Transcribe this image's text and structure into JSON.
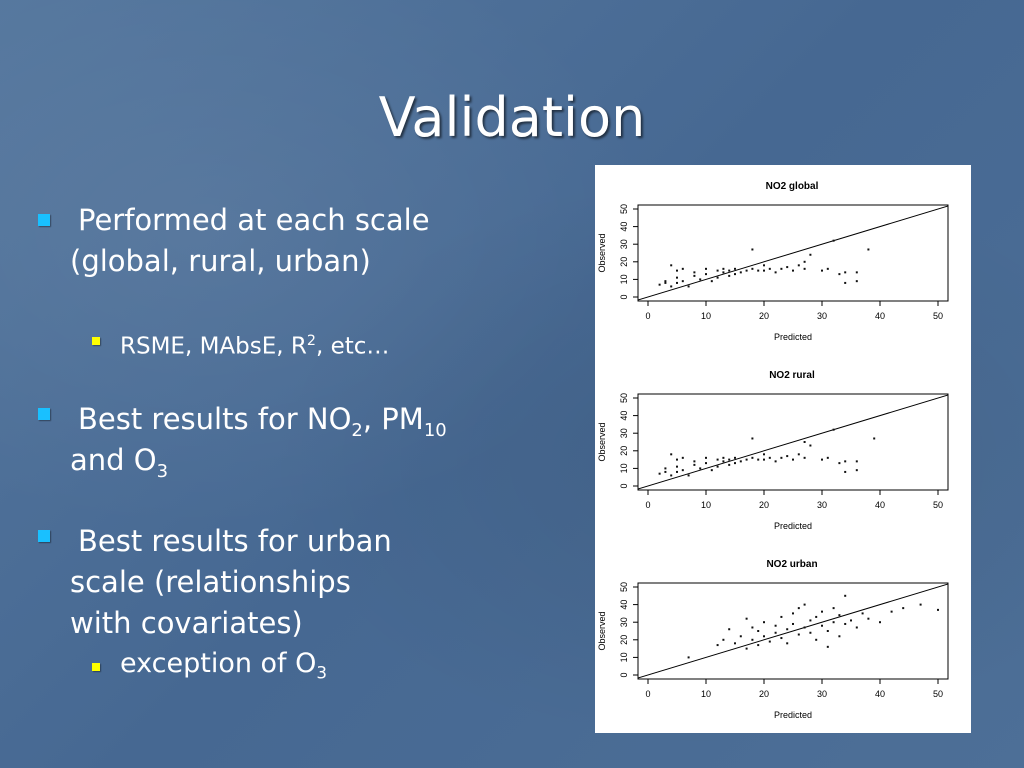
{
  "slide": {
    "title": "Validation",
    "colors": {
      "bullet_level1": "#19c0ff",
      "bullet_level2": "#ffff00",
      "background": "#4b6d95"
    },
    "bullets": [
      {
        "line1": "Performed at each scale",
        "line2": "(global, rural, urban)"
      },
      {
        "text_a": "RSME, MAbsE, R",
        "sup": "2",
        "text_b": ", etc…"
      },
      {
        "text_a": "Best results for NO",
        "sub1": "2",
        "text_b": ", PM",
        "sub2": "10",
        "line2_a": "and O",
        "line2_sub": "3"
      },
      {
        "line1": "Best results for urban",
        "line2": "scale (relationships",
        "line3": "with covariates)"
      },
      {
        "text_a": "exception of O",
        "sub": "3"
      }
    ]
  },
  "chart_data": [
    {
      "type": "scatter",
      "title": "NO2 global",
      "xlabel": "Predicted",
      "ylabel": "Observed",
      "xlim": [
        0,
        50
      ],
      "ylim": [
        0,
        50
      ],
      "xticks": [
        0,
        10,
        20,
        30,
        40,
        50
      ],
      "yticks": [
        0,
        10,
        20,
        30,
        40,
        50
      ],
      "reference_line": "y = x",
      "x": [
        2,
        3,
        3,
        4,
        4,
        5,
        5,
        5,
        6,
        6,
        7,
        8,
        8,
        9,
        10,
        10,
        11,
        12,
        12,
        13,
        13,
        14,
        14,
        15,
        15,
        16,
        17,
        18,
        18,
        19,
        20,
        20,
        21,
        22,
        23,
        24,
        25,
        26,
        27,
        27,
        28,
        30,
        31,
        32,
        33,
        34,
        34,
        36,
        36,
        38
      ],
      "y": [
        7,
        8,
        9,
        18,
        6,
        15,
        8,
        11,
        16,
        9,
        6,
        12,
        14,
        10,
        13,
        16,
        9,
        15,
        11,
        14,
        16,
        12,
        15,
        13,
        16,
        14,
        15,
        16,
        27,
        15,
        15,
        18,
        16,
        14,
        16,
        17,
        15,
        18,
        16,
        20,
        24,
        15,
        16,
        32,
        13,
        14,
        8,
        14,
        9,
        27
      ]
    },
    {
      "type": "scatter",
      "title": "NO2 rural",
      "xlabel": "Predicted",
      "ylabel": "Observed",
      "xlim": [
        0,
        50
      ],
      "ylim": [
        0,
        50
      ],
      "xticks": [
        0,
        10,
        20,
        30,
        40,
        50
      ],
      "yticks": [
        0,
        10,
        20,
        30,
        40,
        50
      ],
      "reference_line": "y = x",
      "x": [
        2,
        3,
        3,
        4,
        4,
        5,
        5,
        5,
        6,
        6,
        7,
        8,
        8,
        9,
        10,
        10,
        11,
        12,
        12,
        13,
        13,
        14,
        14,
        15,
        15,
        16,
        17,
        18,
        18,
        19,
        20,
        20,
        21,
        22,
        23,
        24,
        25,
        26,
        27,
        27,
        28,
        30,
        31,
        32,
        33,
        34,
        34,
        36,
        36,
        39
      ],
      "y": [
        7,
        8,
        10,
        18,
        6,
        15,
        8,
        11,
        16,
        9,
        6,
        12,
        14,
        10,
        13,
        16,
        9,
        15,
        11,
        14,
        16,
        12,
        15,
        13,
        16,
        14,
        15,
        16,
        27,
        15,
        15,
        18,
        16,
        14,
        16,
        17,
        15,
        18,
        16,
        25,
        23,
        15,
        16,
        32,
        13,
        14,
        8,
        14,
        9,
        27
      ]
    },
    {
      "type": "scatter",
      "title": "NO2 urban",
      "xlabel": "Predicted",
      "ylabel": "Observed",
      "xlim": [
        0,
        50
      ],
      "ylim": [
        0,
        50
      ],
      "xticks": [
        0,
        10,
        20,
        30,
        40,
        50
      ],
      "yticks": [
        0,
        10,
        20,
        30,
        40,
        50
      ],
      "reference_line": "y = x",
      "x": [
        7,
        12,
        13,
        14,
        15,
        16,
        17,
        17,
        18,
        18,
        19,
        19,
        20,
        20,
        21,
        22,
        22,
        23,
        23,
        24,
        24,
        25,
        25,
        26,
        26,
        27,
        27,
        28,
        28,
        29,
        29,
        30,
        30,
        31,
        31,
        32,
        32,
        33,
        33,
        34,
        34,
        35,
        36,
        37,
        38,
        40,
        42,
        44,
        47,
        50
      ],
      "y": [
        10,
        17,
        20,
        26,
        18,
        22,
        15,
        32,
        20,
        27,
        17,
        25,
        22,
        30,
        19,
        24,
        28,
        21,
        33,
        26,
        18,
        29,
        35,
        23,
        38,
        27,
        40,
        24,
        31,
        33,
        20,
        28,
        36,
        25,
        16,
        30,
        38,
        22,
        34,
        29,
        45,
        31,
        27,
        35,
        32,
        30,
        36,
        38,
        40,
        37
      ]
    }
  ]
}
